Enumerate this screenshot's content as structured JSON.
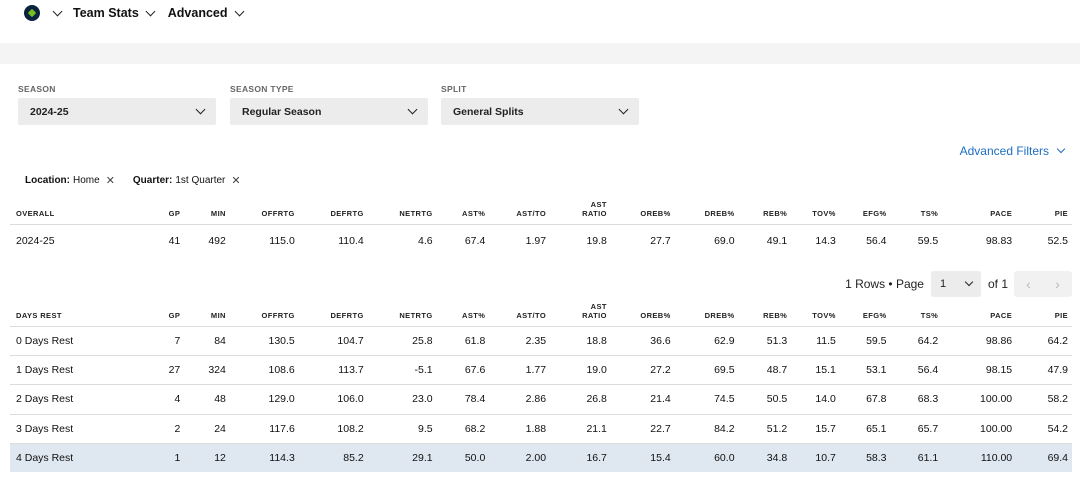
{
  "nav": {
    "menu1": "Team Stats",
    "menu2": "Advanced"
  },
  "filters": {
    "season": {
      "label": "SEASON",
      "value": "2024-25"
    },
    "season_type": {
      "label": "SEASON TYPE",
      "value": "Regular Season"
    },
    "split": {
      "label": "SPLIT",
      "value": "General Splits"
    }
  },
  "advanced_filters": "Advanced Filters",
  "chips": [
    {
      "key": "Location:",
      "value": "Home"
    },
    {
      "key": "Quarter:",
      "value": "1st Quarter"
    }
  ],
  "overall": {
    "header": [
      "OVERALL",
      "GP",
      "MIN",
      "OFFRTG",
      "DEFRTG",
      "NETRTG",
      "AST%",
      "AST/TO",
      "AST RATIO",
      "OREB%",
      "DREB%",
      "REB%",
      "TOV%",
      "EFG%",
      "TS%",
      "PACE",
      "PIE"
    ],
    "rows": [
      [
        "2024-25",
        "41",
        "492",
        "115.0",
        "110.4",
        "4.6",
        "67.4",
        "1.97",
        "19.8",
        "27.7",
        "69.0",
        "49.1",
        "14.3",
        "56.4",
        "59.5",
        "98.83",
        "52.5"
      ]
    ]
  },
  "pager": {
    "rows_text": "1 Rows • Page",
    "page": "1",
    "of_text": "of 1",
    "prev": "‹",
    "next": "›"
  },
  "days_rest": {
    "header": [
      "DAYS REST",
      "GP",
      "MIN",
      "OFFRTG",
      "DEFRTG",
      "NETRTG",
      "AST%",
      "AST/TO",
      "AST RATIO",
      "OREB%",
      "DREB%",
      "REB%",
      "TOV%",
      "EFG%",
      "TS%",
      "PACE",
      "PIE"
    ],
    "rows": [
      [
        "0 Days Rest",
        "7",
        "84",
        "130.5",
        "104.7",
        "25.8",
        "61.8",
        "2.35",
        "18.8",
        "36.6",
        "62.9",
        "51.3",
        "11.5",
        "59.5",
        "64.2",
        "98.86",
        "64.2"
      ],
      [
        "1 Days Rest",
        "27",
        "324",
        "108.6",
        "113.7",
        "-5.1",
        "67.6",
        "1.77",
        "19.0",
        "27.2",
        "69.5",
        "48.7",
        "15.1",
        "53.1",
        "56.4",
        "98.15",
        "47.9"
      ],
      [
        "2 Days Rest",
        "4",
        "48",
        "129.0",
        "106.0",
        "23.0",
        "78.4",
        "2.86",
        "26.8",
        "21.4",
        "74.5",
        "50.5",
        "14.0",
        "67.8",
        "68.3",
        "100.00",
        "58.2"
      ],
      [
        "3 Days Rest",
        "2",
        "24",
        "117.6",
        "108.2",
        "9.5",
        "68.2",
        "1.88",
        "21.1",
        "22.7",
        "84.2",
        "51.2",
        "15.7",
        "65.1",
        "65.7",
        "100.00",
        "54.2"
      ],
      [
        "4 Days Rest",
        "1",
        "12",
        "114.3",
        "85.2",
        "29.1",
        "50.0",
        "2.00",
        "16.7",
        "15.4",
        "60.0",
        "34.8",
        "10.7",
        "58.3",
        "61.1",
        "110.00",
        "69.4"
      ]
    ],
    "highlighted_row": 4
  },
  "colors": {
    "link": "#1d6dc2",
    "highlight_row": "#dfe7f0",
    "team_logo": "#0c2340"
  },
  "icons": {
    "team_logo": "team-logo-icon",
    "dropdown": "chevron-down-icon",
    "chip_remove": "close-icon"
  }
}
